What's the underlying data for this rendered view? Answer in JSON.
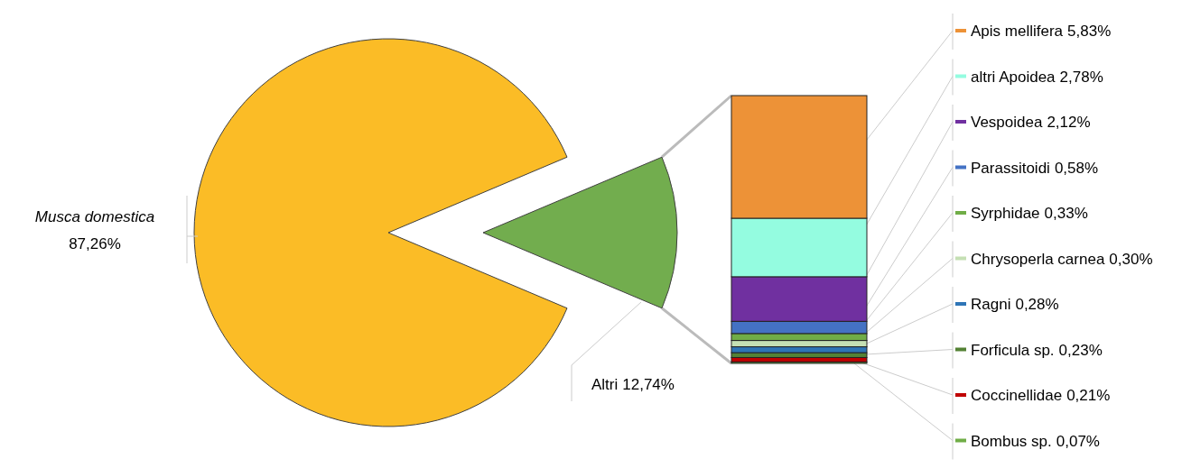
{
  "chart_data": {
    "type": "other",
    "categories": [
      "Musca domestica",
      "Altri"
    ],
    "values": [
      87.26,
      12.74
    ],
    "colors": [
      "#fbbc26",
      "#72ad4e"
    ],
    "value_labels": [
      "87,26%",
      "12,74%"
    ],
    "series": [
      {
        "name": "Bombus sp.",
        "color": "#70ad47",
        "values": [
          null,
          0.07
        ],
        "value_labels": [
          null,
          "0,07%"
        ]
      },
      {
        "name": "Coccinellidae",
        "color": "#c00000",
        "values": [
          null,
          0.21
        ],
        "value_labels": [
          null,
          "0,21%"
        ]
      },
      {
        "name": "Forficula sp.",
        "color": "#548235",
        "values": [
          null,
          0.23
        ],
        "value_labels": [
          null,
          "0,23%"
        ]
      },
      {
        "name": "Ragni",
        "color": "#2e75b6",
        "values": [
          null,
          0.28
        ],
        "value_labels": [
          null,
          "0,28%"
        ]
      },
      {
        "name": "Chrysoperla carnea",
        "color": "#c5e0b4",
        "values": [
          null,
          0.3
        ],
        "value_labels": [
          null,
          "0,30%"
        ]
      },
      {
        "name": "Syrphidae",
        "color": "#70ad47",
        "values": [
          null,
          0.33
        ],
        "value_labels": [
          null,
          "0,33%"
        ]
      },
      {
        "name": "Parassitoidi",
        "color": "#4472c4",
        "values": [
          null,
          0.58
        ],
        "value_labels": [
          null,
          "0,58%"
        ]
      },
      {
        "name": "Vespoidea",
        "color": "#7030a0",
        "values": [
          null,
          2.12
        ],
        "value_labels": [
          null,
          "2,12%"
        ]
      },
      {
        "name": "altri Apoidea",
        "color": "#94fce0",
        "values": [
          null,
          2.78
        ],
        "value_labels": [
          null,
          "2,78%"
        ]
      },
      {
        "name": "Apis mellifera",
        "color": "#ed9237",
        "values": [
          null,
          5.83
        ],
        "value_labels": [
          null,
          "5,83%"
        ]
      }
    ]
  }
}
